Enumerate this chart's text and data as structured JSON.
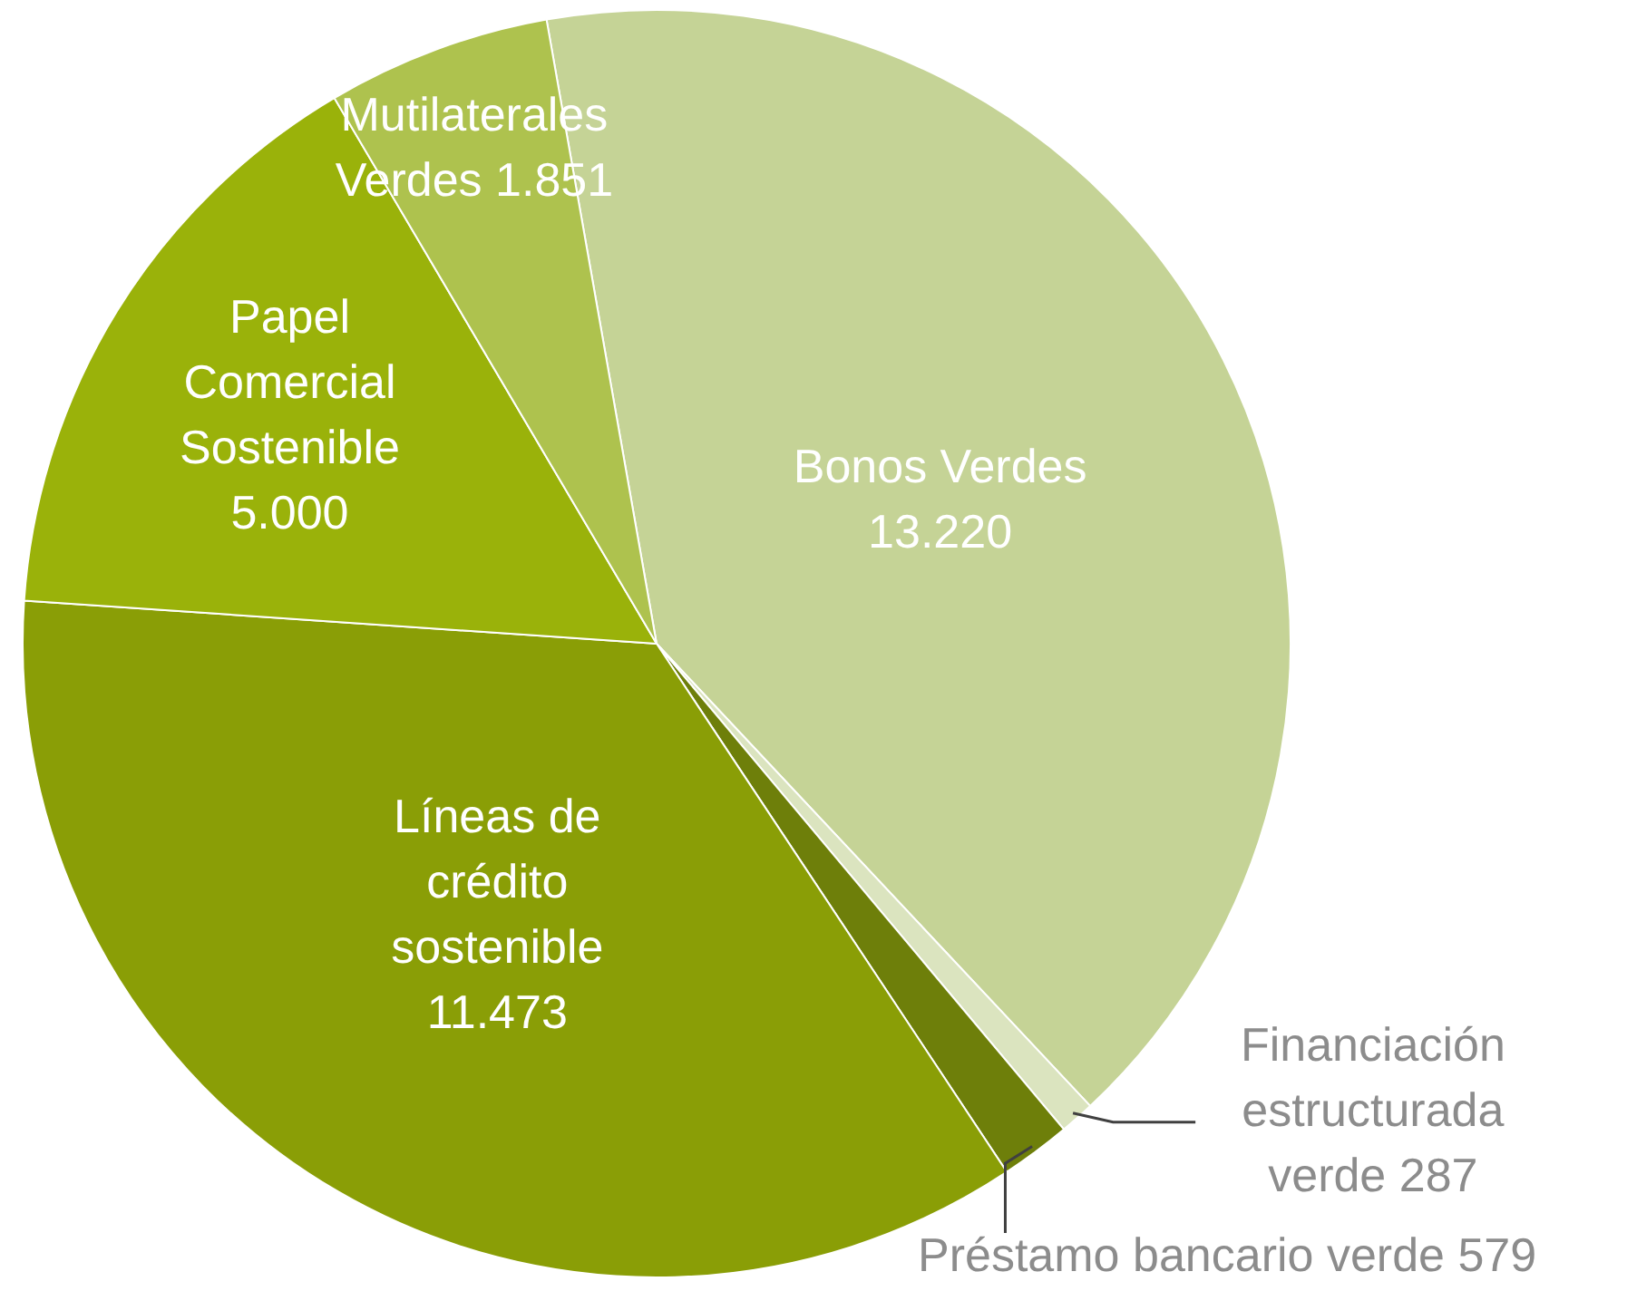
{
  "chart_data": {
    "type": "pie",
    "categories": [
      "Bonos Verdes",
      "Financiación estructurada verde",
      "Préstamo bancario verde",
      "Líneas de crédito sostenible",
      "Papel Comercial Sostenible",
      "Mutilaterales Verdes"
    ],
    "values": [
      13220,
      287,
      579,
      11473,
      5000,
      1851
    ],
    "value_labels": [
      "13.220",
      "287",
      "579",
      "11.473",
      "5.000",
      "1.851"
    ],
    "colors": [
      "#c5d396",
      "#dbe4bf",
      "#6e7f0a",
      "#8a9e06",
      "#9ab20a",
      "#aec24e"
    ],
    "legend": false
  }
}
